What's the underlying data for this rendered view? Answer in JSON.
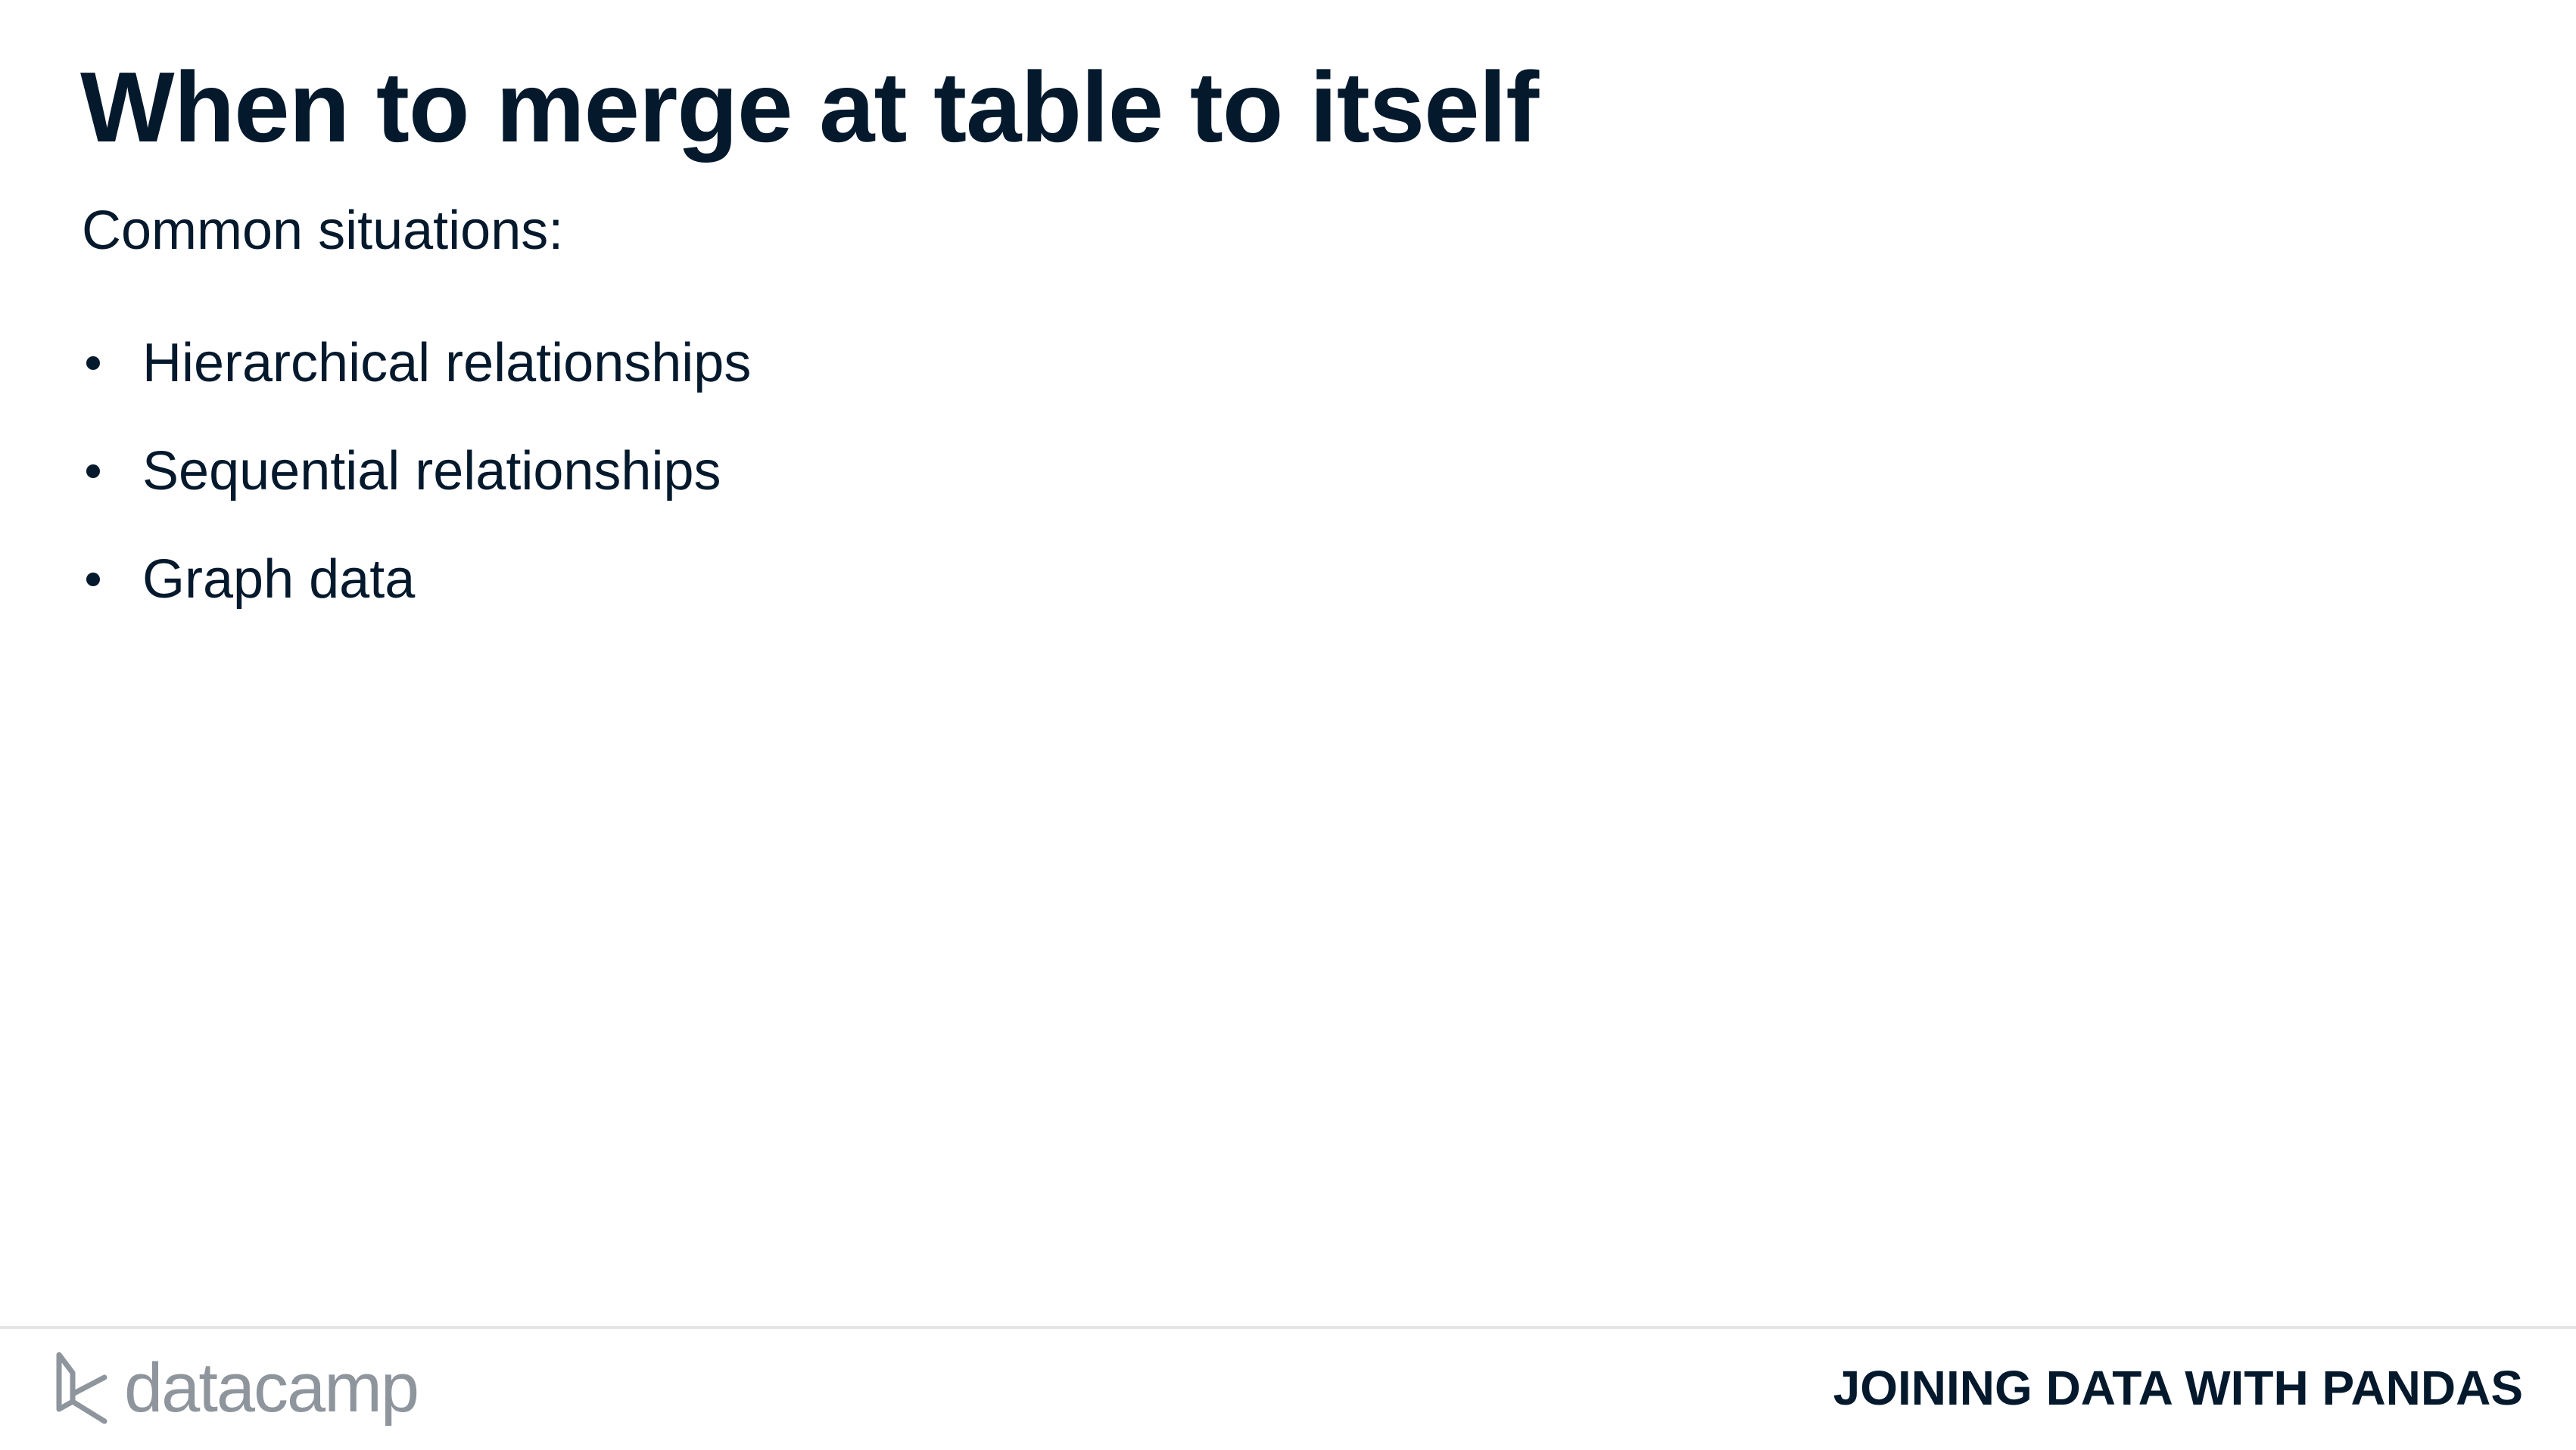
{
  "slide": {
    "title": "When to merge at table to itself",
    "intro": "Common situations:",
    "bullets": [
      {
        "text": "Hierarchical relationships"
      },
      {
        "text": "Sequential relationships"
      },
      {
        "text": "Graph data"
      }
    ]
  },
  "footer": {
    "logo_text": "datacamp",
    "course_name": "JOINING DATA WITH PANDAS",
    "logo_icon": "datacamp-logo-icon"
  },
  "colors": {
    "text": "#05192d",
    "logo": "#8e959c",
    "rule": "#e5e5e5",
    "background": "#ffffff"
  }
}
